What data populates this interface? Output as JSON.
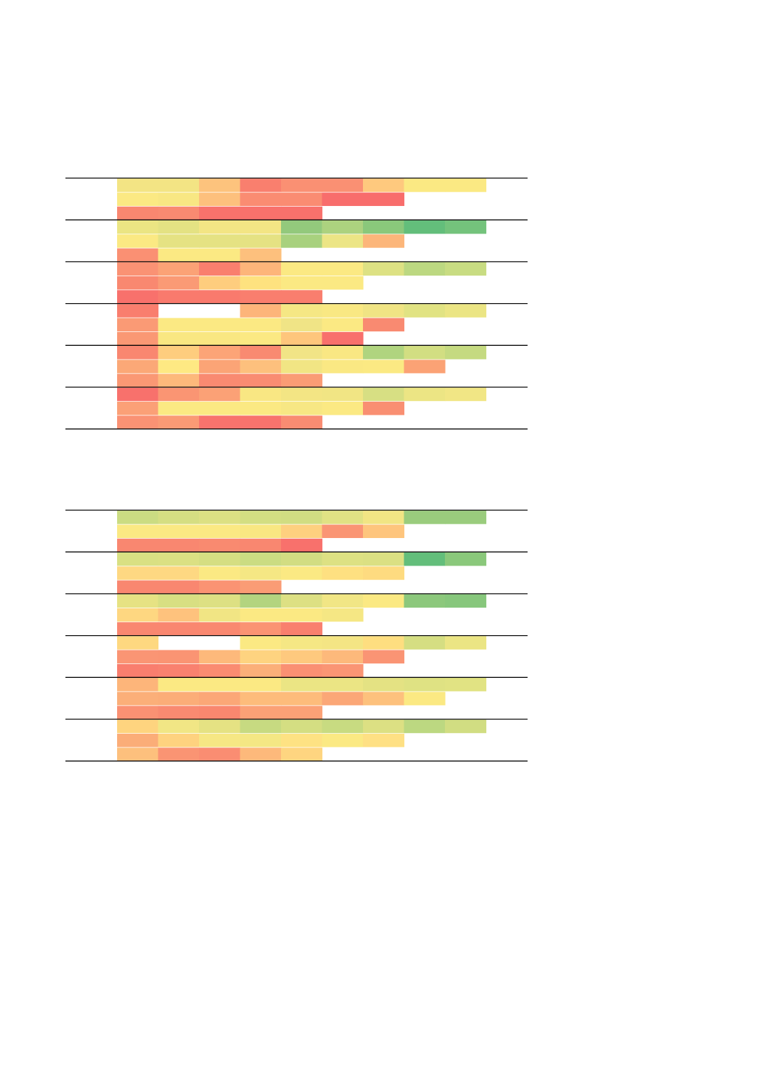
{
  "colors": {
    "red": "#f8696b",
    "orange": "#fb9d75",
    "peach": "#fdbf7d",
    "yellow": "#fbe983",
    "yellow_green": "#dfe283",
    "light_green": "#a8d17e",
    "green": "#63be7b",
    "rule": "#000000"
  },
  "chart_data": [
    {
      "type": "heatmap",
      "color_scale": [
        "red",
        "orange",
        "peach",
        "yellow",
        "yellow_green",
        "light_green",
        "green"
      ],
      "groups": [
        {
          "rows": [
            [
              "#f3e484",
              "#f3e484",
              "#fdc37d",
              "#f97f6e",
              "#fa9073",
              "#fa9073",
              "#fec97e",
              "#fbe983",
              "#fbe983"
            ],
            [
              "#fbe983",
              "#f8e783",
              "#fdc07d",
              "#fa8c72",
              "#fa8c72",
              "#f86d6c",
              "#f86d6c"
            ],
            [
              "#f98770",
              "#f98a71",
              "#f8726c",
              "#f8716c",
              "#f8716c"
            ]
          ]
        },
        {
          "rows": [
            [
              "#ebe583",
              "#e4e283",
              "#f3e584",
              "#f3e584",
              "#93c97c",
              "#acd27f",
              "#8ac87b",
              "#63be7b",
              "#74c37c"
            ],
            [
              "#fbe983",
              "#e5e283",
              "#e5e283",
              "#e5e283",
              "#a8d17e",
              "#ece585",
              "#fcb67a"
            ],
            [
              "#fa9073",
              "#fbe983",
              "#fbe983",
              "#fdc07d"
            ]
          ]
        },
        {
          "rows": [
            [
              "#fa9274",
              "#fba276",
              "#f97f6e",
              "#fdb57a",
              "#fbe983",
              "#fbe983",
              "#dde183",
              "#bcd881",
              "#c8dc82"
            ],
            [
              "#f98870",
              "#fa9a75",
              "#fecd7e",
              "#fee27f",
              "#fbe983",
              "#fbe983"
            ],
            [
              "#f8716c",
              "#f97a6d",
              "#f97a6d",
              "#f97e6e",
              "#f97e6e"
            ]
          ]
        },
        {
          "rows": [
            [
              "#f97e6e",
              null,
              null,
              "#fdb57a",
              "#f5e784",
              "#f9e883",
              "#f0e484",
              "#e1e383",
              "#ebe584"
            ],
            [
              "#fa9a75",
              "#fbe983",
              "#fbe983",
              "#fbe983",
              "#f0e486",
              "#fbe983",
              "#f98a71"
            ],
            [
              "#fa9874",
              "#f9e782",
              "#f9e782",
              "#fbe983",
              "#fec67c",
              "#f8706c"
            ]
          ]
        },
        {
          "rows": [
            [
              "#f98770",
              "#fecd7e",
              "#fca477",
              "#f98a71",
              "#f1e486",
              "#f9e783",
              "#b0d47f",
              "#d2de82",
              "#c5da81"
            ],
            [
              "#fba877",
              "#fee983",
              "#fba476",
              "#fdc07d",
              "#f1e584",
              "#fae883",
              "#fbe983",
              "#fba275"
            ],
            [
              "#fa9874",
              "#fdb97b",
              "#f98a71",
              "#f98c72",
              "#fa9c75"
            ]
          ]
        },
        {
          "rows": [
            [
              "#f8716c",
              "#fa9573",
              "#fba176",
              "#f9e783",
              "#f3e584",
              "#f1e584",
              "#d7df83",
              "#ece584",
              "#f1e685"
            ],
            [
              "#fba077",
              "#fbe983",
              "#fbe983",
              "#fbe983",
              "#f7e784",
              "#fbe983",
              "#f98f72"
            ],
            [
              "#fa9274",
              "#fa9a75",
              "#f8736d",
              "#f8736d",
              "#f98c72"
            ]
          ]
        }
      ]
    },
    {
      "type": "heatmap",
      "color_scale": [
        "red",
        "orange",
        "peach",
        "yellow",
        "yellow_green",
        "light_green",
        "green"
      ],
      "groups": [
        {
          "rows": [
            [
              "#cbdc82",
              "#d5de82",
              "#dce083",
              "#d3de82",
              "#d1dd82",
              "#e0e284",
              "#f1e584",
              "#9acc7d",
              "#9acc7d"
            ],
            [
              "#fbe983",
              "#fbe983",
              "#fbe983",
              "#f9e782",
              "#fed07f",
              "#fa9574",
              "#fec57d"
            ],
            [
              "#f98770",
              "#f98770",
              "#f98a70",
              "#f98770",
              "#f8716c"
            ]
          ]
        },
        {
          "rows": [
            [
              "#d9e083",
              "#dbe083",
              "#d5de82",
              "#cbdc82",
              "#d2dd82",
              "#dde183",
              "#dbe083",
              "#63be7b",
              "#8ac87b"
            ],
            [
              "#fed882",
              "#fed882",
              "#fbe983",
              "#f5e784",
              "#fbe983",
              "#fee081",
              "#fedb80"
            ],
            [
              "#f98770",
              "#f98770",
              "#fa9373",
              "#fa9c75"
            ]
          ]
        },
        {
          "rows": [
            [
              "#e6e283",
              "#d8df82",
              "#dde083",
              "#b3d47f",
              "#dde083",
              "#f1e685",
              "#fbe983",
              "#8cc87c",
              "#87c77c"
            ],
            [
              "#fed781",
              "#fec27d",
              "#f1e584",
              "#fbe983",
              "#fbe983",
              "#f5e784"
            ],
            [
              "#f98770",
              "#f98770",
              "#f98870",
              "#fa9373",
              "#f97f6e"
            ]
          ]
        },
        {
          "rows": [
            [
              "#fed880",
              null,
              null,
              "#fbe983",
              "#f5e784",
              "#f4e584",
              "#fede80",
              "#d5de82",
              "#ebe584"
            ],
            [
              "#fa9574",
              "#fa9473",
              "#fdb97b",
              "#fed380",
              "#fec97e",
              "#fdb97b",
              "#fa9474"
            ],
            [
              "#f97e6e",
              "#f9816f",
              "#fa8b71",
              "#fbaf79",
              "#fa9073",
              "#fa9574"
            ]
          ]
        },
        {
          "rows": [
            [
              "#fdb57a",
              "#fbe983",
              "#fbe983",
              "#fbe983",
              "#ebe584",
              "#ebe584",
              "#e4e283",
              "#dfe283",
              "#e1e383"
            ],
            [
              "#fbaf79",
              "#fbad78",
              "#fba777",
              "#fdbc7b",
              "#fdbc7b",
              "#fba777",
              "#fdc17d",
              "#fbe983"
            ],
            [
              "#fa9173",
              "#f98a71",
              "#f9876f",
              "#fba176",
              "#fba176"
            ]
          ]
        },
        {
          "rows": [
            [
              "#fed47f",
              "#f1e685",
              "#e5e283",
              "#c7da81",
              "#d4de82",
              "#c8db81",
              "#dce083",
              "#bcd881",
              "#d1dd82"
            ],
            [
              "#fbad78",
              "#fed27f",
              "#f6e784",
              "#f4e784",
              "#fee283",
              "#fbe983",
              "#fee084"
            ],
            [
              "#fdc07d",
              "#fa9473",
              "#fa8d72",
              "#fdb97b",
              "#fed580"
            ]
          ]
        }
      ]
    }
  ]
}
